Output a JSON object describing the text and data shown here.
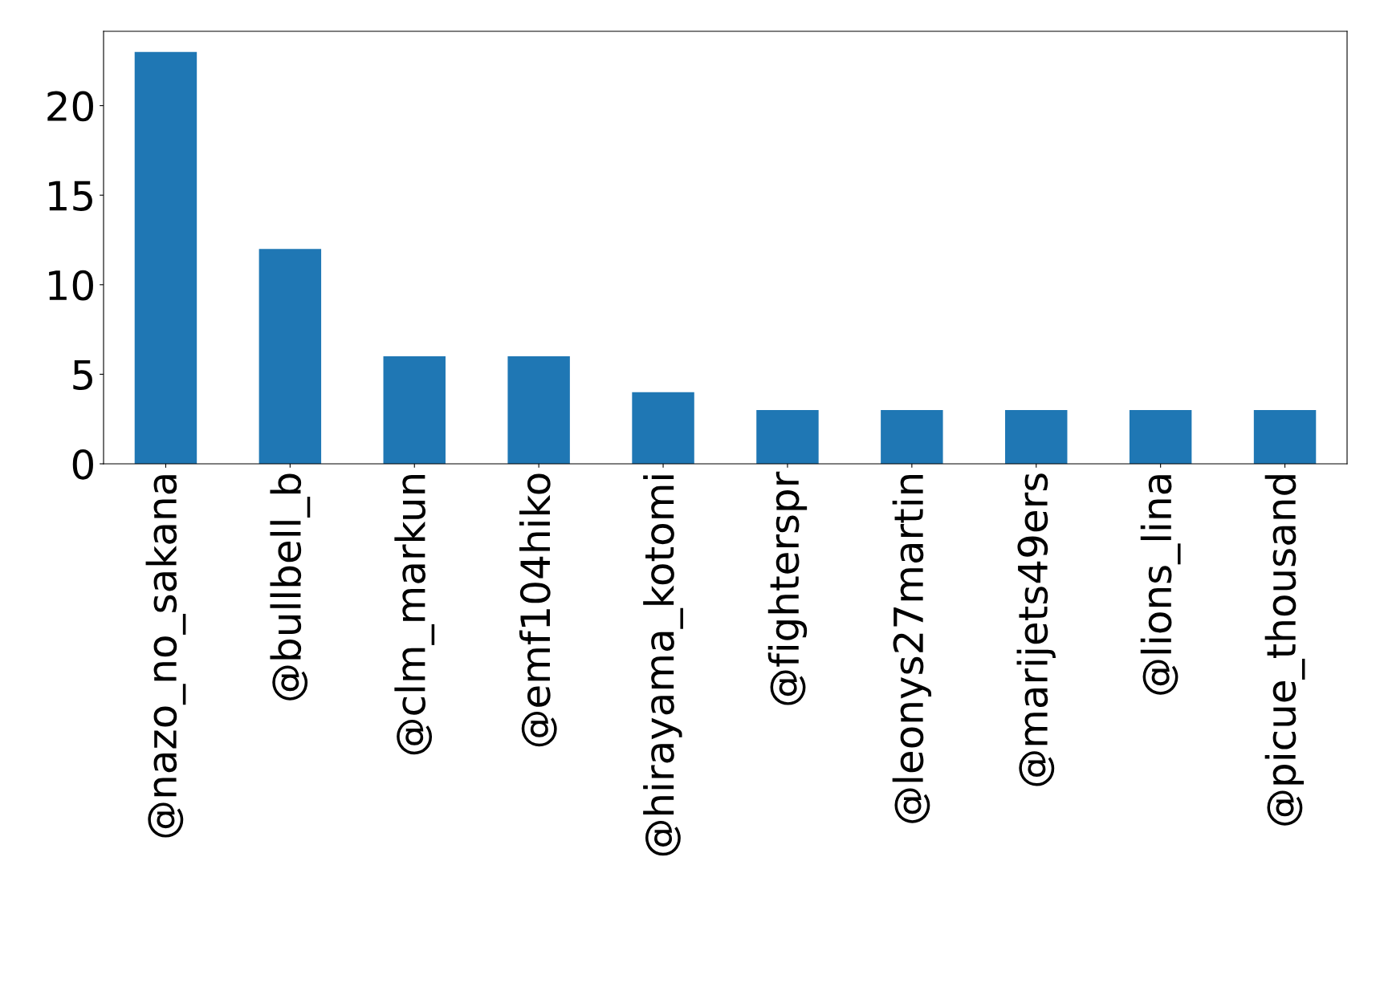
{
  "chart_data": {
    "type": "bar",
    "categories": [
      "@nazo_no_sakana",
      "@bullbell_b",
      "@clm_markun",
      "@emf104hiko",
      "@hirayama_kotomi",
      "@fighterspr",
      "@leonys27martin",
      "@marijets49ers",
      "@lions_lina",
      "@picue_thousand"
    ],
    "values": [
      23,
      12,
      6,
      6,
      4,
      3,
      3,
      3,
      3,
      3
    ],
    "color": "#1f77b4",
    "ylim": [
      0,
      24.15
    ],
    "yticks": [
      0,
      5,
      10,
      15,
      20
    ],
    "grid": false,
    "legend": false
  }
}
